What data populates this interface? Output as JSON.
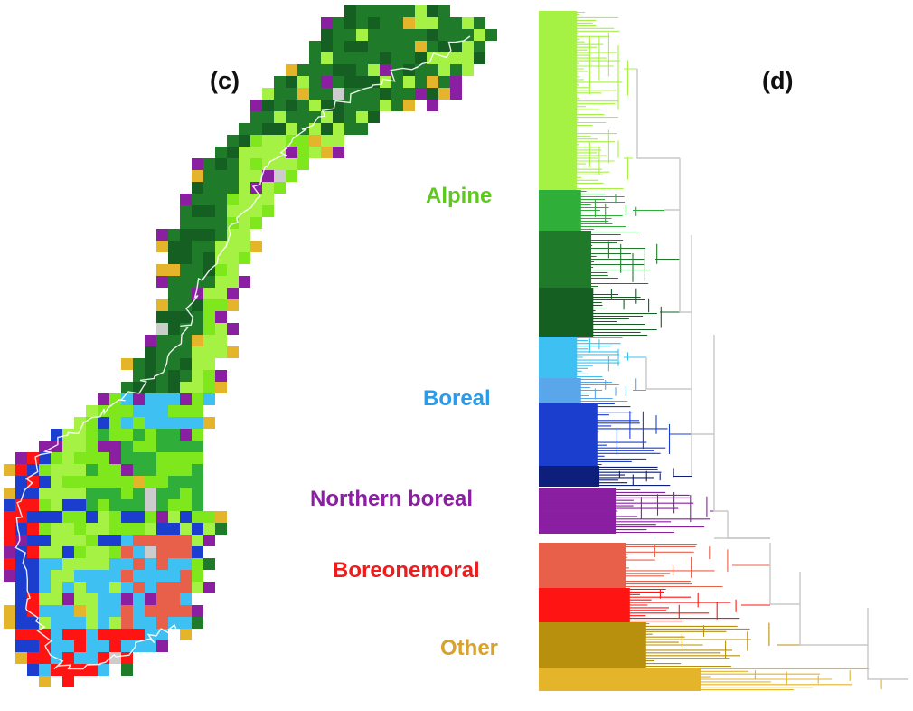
{
  "panels": {
    "map_label": "(c)",
    "tree_label": "(d)"
  },
  "legend": [
    {
      "name": "Alpine",
      "color": "#5fc81e"
    },
    {
      "name": "Boreal",
      "color": "#2a9be8"
    },
    {
      "name": "Northern boreal",
      "color": "#8a1fa2"
    },
    {
      "name": "Boreonemoral",
      "color": "#ee1c1c"
    },
    {
      "name": "Other",
      "color": "#d9a22c"
    }
  ],
  "palette": {
    "alpine_light": "#a6f244",
    "alpine_bright": "#7ee81c",
    "alpine_mid": "#2fae3a",
    "alpine_dark": "#1f7a2a",
    "alpine_darkest": "#155f22",
    "boreal_cyan": "#3ec0f2",
    "boreal_light": "#5aa6ea",
    "boreal_blue": "#1c3ecf",
    "boreal_navy": "#0d1f7a",
    "northern_boreal": "#8a1fa2",
    "boreonemoral_salmon": "#e8604a",
    "boreonemoral_red": "#ff1414",
    "other_dark": "#b8900e",
    "other_light": "#e4b42a",
    "unassigned": "#cccccc"
  }
}
